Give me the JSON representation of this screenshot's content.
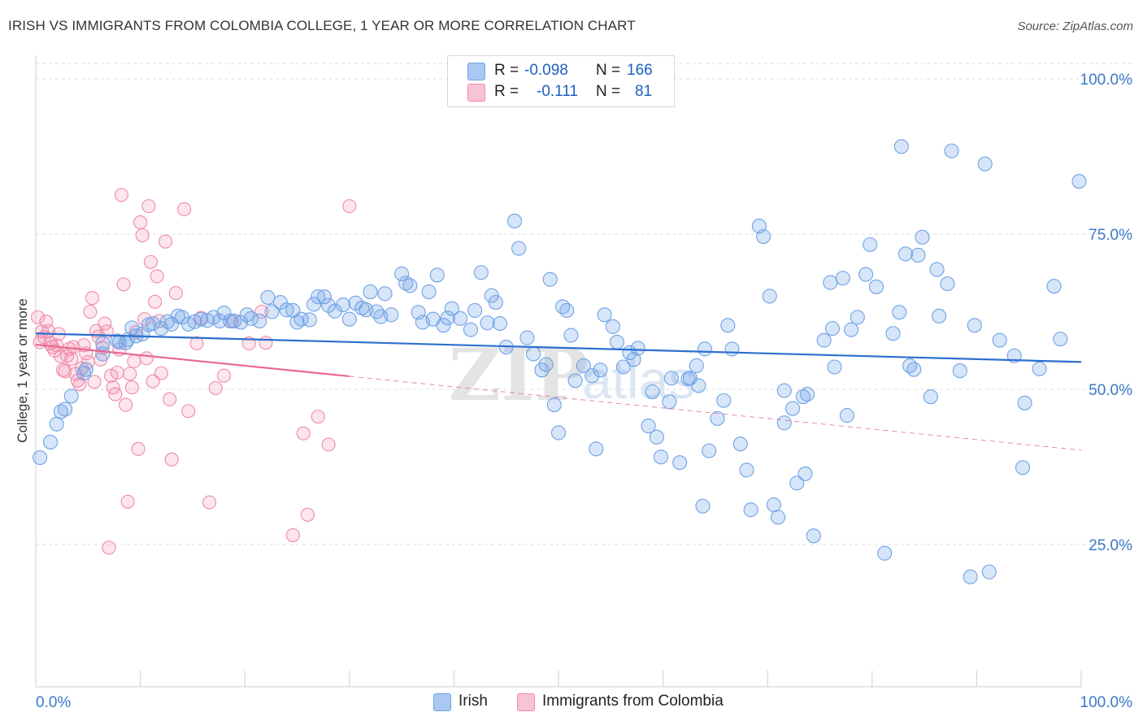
{
  "header": {
    "title": "IRISH VS IMMIGRANTS FROM COLOMBIA COLLEGE, 1 YEAR OR MORE CORRELATION CHART",
    "source": "Source: ZipAtlas.com"
  },
  "legend": {
    "rows": [
      {
        "r_label": "R =",
        "r_value": "-0.098",
        "n_label": "N =",
        "n_value": "166",
        "color": "#6fa3e6"
      },
      {
        "r_label": "R =",
        "r_value": "-0.111",
        "n_label": "N =",
        "n_value": "81",
        "color": "#f08aa8"
      }
    ]
  },
  "bottom_legend": {
    "irish": "Irish",
    "colombia": "Immigrants from Colombia"
  },
  "chart_data": {
    "type": "scatter",
    "xlabel": "",
    "ylabel": "College, 1 year or more",
    "xlim": [
      0,
      100
    ],
    "ylim": [
      0,
      105
    ],
    "x_tick_labels": [
      "0.0%",
      "100.0%"
    ],
    "y_tick_labels": [
      "25.0%",
      "50.0%",
      "75.0%",
      "100.0%"
    ],
    "y_ticks": [
      25,
      50,
      75,
      100
    ],
    "grid": true,
    "legend_position": "top-center",
    "watermark": "ZIPatlas",
    "colors": {
      "irish": "#6fa3e6",
      "colombia": "#f08aa8",
      "irish_line": "#2c6fcf",
      "colombia_line": "#e8698f",
      "tick_text": "#3b78c8"
    },
    "series": [
      {
        "name": "Irish",
        "trend": {
          "x": [
            0,
            100
          ],
          "y": [
            59.0,
            54.4
          ]
        },
        "points": [
          [
            0.4,
            39
          ],
          [
            1.4,
            41.5
          ],
          [
            2,
            44.4
          ],
          [
            2.4,
            46.4
          ],
          [
            2.8,
            46.8
          ],
          [
            3.4,
            48.9
          ],
          [
            4.6,
            52.6
          ],
          [
            4.8,
            53.2
          ],
          [
            6.4,
            55.7
          ],
          [
            6.4,
            57.4
          ],
          [
            7.8,
            57.8
          ],
          [
            8,
            57.6
          ],
          [
            8.6,
            57.5
          ],
          [
            8.8,
            58
          ],
          [
            9.2,
            59.9
          ],
          [
            9.6,
            58.6
          ],
          [
            10.2,
            58.9
          ],
          [
            10.8,
            60.4
          ],
          [
            11.2,
            60.6
          ],
          [
            12,
            59.8
          ],
          [
            12.6,
            60.9
          ],
          [
            13,
            60.5
          ],
          [
            13.6,
            61.8
          ],
          [
            14,
            61.6
          ],
          [
            14.6,
            60.5
          ],
          [
            15.2,
            60.9
          ],
          [
            15.8,
            61.3
          ],
          [
            16.4,
            61.1
          ],
          [
            17,
            61.6
          ],
          [
            17.6,
            61
          ],
          [
            18,
            62.3
          ],
          [
            18.6,
            61
          ],
          [
            19,
            61
          ],
          [
            19.6,
            60.8
          ],
          [
            20.2,
            62
          ],
          [
            20.6,
            61.4
          ],
          [
            21.4,
            61
          ],
          [
            22.2,
            64.8
          ],
          [
            22.6,
            62.5
          ],
          [
            23.4,
            64
          ],
          [
            24,
            62.8
          ],
          [
            24.6,
            62.7
          ],
          [
            25,
            60.8
          ],
          [
            25.4,
            61.3
          ],
          [
            26.2,
            61.2
          ],
          [
            26.6,
            63.7
          ],
          [
            27,
            64.9
          ],
          [
            27.6,
            64.9
          ],
          [
            28,
            63.5
          ],
          [
            28.6,
            62.6
          ],
          [
            29.4,
            63.6
          ],
          [
            30,
            61.3
          ],
          [
            30.6,
            63.9
          ],
          [
            31.2,
            63.1
          ],
          [
            31.6,
            62.8
          ],
          [
            32,
            65.7
          ],
          [
            32.6,
            62.5
          ],
          [
            33,
            61.7
          ],
          [
            33.4,
            65.4
          ],
          [
            34,
            62
          ],
          [
            35,
            68.6
          ],
          [
            35.4,
            67.1
          ],
          [
            35.8,
            66.7
          ],
          [
            36.6,
            62.4
          ],
          [
            37,
            60.8
          ],
          [
            37.6,
            65.7
          ],
          [
            38,
            61.3
          ],
          [
            38.4,
            68.4
          ],
          [
            39,
            60.3
          ],
          [
            39.4,
            61.5
          ],
          [
            39.8,
            63
          ],
          [
            40.6,
            61.4
          ],
          [
            41.6,
            59.6
          ],
          [
            42,
            62.7
          ],
          [
            42.6,
            68.8
          ],
          [
            43.2,
            60.7
          ],
          [
            43.6,
            65.1
          ],
          [
            44,
            64
          ],
          [
            44.4,
            60.6
          ],
          [
            45,
            56.8
          ],
          [
            45.8,
            77.1
          ],
          [
            46.2,
            72.7
          ],
          [
            47,
            58.3
          ],
          [
            47.6,
            55.7
          ],
          [
            48.4,
            53.1
          ],
          [
            48.8,
            54
          ],
          [
            49.2,
            67.7
          ],
          [
            49.6,
            47.5
          ],
          [
            50,
            43
          ],
          [
            50.4,
            63.3
          ],
          [
            50.8,
            62.7
          ],
          [
            51.2,
            58.7
          ],
          [
            51.6,
            51.4
          ],
          [
            52.4,
            53.8
          ],
          [
            53.2,
            52.2
          ],
          [
            53.6,
            40.4
          ],
          [
            54,
            53.1
          ],
          [
            54.4,
            62
          ],
          [
            55.2,
            60.1
          ],
          [
            55.6,
            57.6
          ],
          [
            56.2,
            53.6
          ],
          [
            56.8,
            55.9
          ],
          [
            57.2,
            54.8
          ],
          [
            57.6,
            56.6
          ],
          [
            58.6,
            44.1
          ],
          [
            59,
            49.6
          ],
          [
            59.4,
            42.3
          ],
          [
            59.8,
            39.1
          ],
          [
            60.6,
            48
          ],
          [
            60.8,
            51.8
          ],
          [
            61.6,
            38.2
          ],
          [
            62.4,
            51.7
          ],
          [
            62.6,
            51.8
          ],
          [
            63.2,
            53.8
          ],
          [
            63.4,
            50.6
          ],
          [
            63.8,
            31.2
          ],
          [
            64,
            56.5
          ],
          [
            64.4,
            40.1
          ],
          [
            65.2,
            45.3
          ],
          [
            65.8,
            48.2
          ],
          [
            66.2,
            60.3
          ],
          [
            66.6,
            56.5
          ],
          [
            67.4,
            41.2
          ],
          [
            68,
            37
          ],
          [
            68.4,
            30.6
          ],
          [
            69.2,
            76.3
          ],
          [
            69.6,
            74.6
          ],
          [
            70.2,
            65
          ],
          [
            70.6,
            31.4
          ],
          [
            71,
            29.4
          ],
          [
            71.6,
            44.6
          ],
          [
            72.4,
            46.9
          ],
          [
            72.8,
            34.9
          ],
          [
            73.6,
            36.4
          ],
          [
            73.8,
            49.2
          ],
          [
            74.4,
            26.4
          ],
          [
            75.4,
            57.9
          ],
          [
            76,
            67.2
          ],
          [
            76.2,
            59.8
          ],
          [
            76.4,
            53.6
          ],
          [
            77.2,
            67.9
          ],
          [
            77.6,
            45.8
          ],
          [
            78,
            59.6
          ],
          [
            78.6,
            61.6
          ],
          [
            79.4,
            68.5
          ],
          [
            79.8,
            73.3
          ],
          [
            80.4,
            66.5
          ],
          [
            81.2,
            23.6
          ],
          [
            82,
            59
          ],
          [
            82.6,
            62.4
          ],
          [
            82.8,
            89.1
          ],
          [
            83.2,
            71.8
          ],
          [
            83.6,
            53.8
          ],
          [
            84,
            53.2
          ],
          [
            84.4,
            71.6
          ],
          [
            84.8,
            74.5
          ],
          [
            85.6,
            48.8
          ],
          [
            86.2,
            69.3
          ],
          [
            86.4,
            61.8
          ],
          [
            87.2,
            67
          ],
          [
            87.6,
            88.4
          ],
          [
            88.4,
            53
          ],
          [
            89.4,
            19.8
          ],
          [
            89.8,
            60.3
          ],
          [
            90.8,
            86.3
          ],
          [
            91.2,
            20.6
          ],
          [
            92.2,
            57.9
          ],
          [
            93.6,
            55.4
          ],
          [
            94.4,
            37.4
          ],
          [
            96,
            53.3
          ],
          [
            97.4,
            66.6
          ],
          [
            99.8,
            83.5
          ],
          [
            98,
            58.1
          ],
          [
            94.6,
            47.8
          ],
          [
            71.6,
            49.8
          ],
          [
            73.4,
            48.8
          ]
        ]
      },
      {
        "name": "Immigrants from Colombia",
        "trend": {
          "x": [
            0,
            30
          ],
          "y": [
            57.2,
            52.1
          ]
        },
        "points": [
          [
            0.2,
            61.6
          ],
          [
            0.4,
            57.6
          ],
          [
            0.6,
            59.3
          ],
          [
            0.8,
            58.4
          ],
          [
            1,
            60.9
          ],
          [
            1.2,
            59.4
          ],
          [
            1.4,
            57.4
          ],
          [
            1.6,
            56.8
          ],
          [
            1.8,
            56.2
          ],
          [
            2,
            57.1
          ],
          [
            2.2,
            58.9
          ],
          [
            2.4,
            55.3
          ],
          [
            2.6,
            53.1
          ],
          [
            2.8,
            52.9
          ],
          [
            3,
            55.4
          ],
          [
            3.2,
            56.5
          ],
          [
            3.4,
            54.9
          ],
          [
            3.6,
            56.8
          ],
          [
            3.8,
            52.5
          ],
          [
            4,
            51.4
          ],
          [
            4.2,
            50.8
          ],
          [
            4.4,
            53.4
          ],
          [
            4.6,
            57.1
          ],
          [
            4.8,
            55.8
          ],
          [
            5,
            54.4
          ],
          [
            5.2,
            62.5
          ],
          [
            5.4,
            64.7
          ],
          [
            5.6,
            51.2
          ],
          [
            5.8,
            59.4
          ],
          [
            6,
            58.5
          ],
          [
            6.2,
            54.8
          ],
          [
            6.4,
            56.7
          ],
          [
            6.6,
            60.6
          ],
          [
            6.8,
            59.3
          ],
          [
            7,
            24.5
          ],
          [
            7.2,
            52.2
          ],
          [
            7.4,
            50.3
          ],
          [
            7.6,
            49.2
          ],
          [
            7.8,
            52.7
          ],
          [
            8,
            56.4
          ],
          [
            8.2,
            81.3
          ],
          [
            8.4,
            66.9
          ],
          [
            8.6,
            47.5
          ],
          [
            8.8,
            31.9
          ],
          [
            9,
            52.5
          ],
          [
            9.2,
            50.3
          ],
          [
            9.4,
            54.5
          ],
          [
            9.6,
            59.2
          ],
          [
            9.8,
            40.4
          ],
          [
            10,
            76.9
          ],
          [
            10.2,
            74.8
          ],
          [
            10.4,
            61.3
          ],
          [
            10.6,
            55
          ],
          [
            10.8,
            79.5
          ],
          [
            11,
            70.5
          ],
          [
            11.2,
            51.3
          ],
          [
            11.4,
            64.1
          ],
          [
            11.6,
            68.2
          ],
          [
            11.8,
            61
          ],
          [
            12,
            52.6
          ],
          [
            12.4,
            73.8
          ],
          [
            12.8,
            48.4
          ],
          [
            13,
            38.7
          ],
          [
            13.4,
            65.5
          ],
          [
            14.2,
            79
          ],
          [
            14.6,
            46.5
          ],
          [
            15.4,
            57.4
          ],
          [
            15.8,
            61.5
          ],
          [
            16.6,
            31.8
          ],
          [
            17.2,
            50.2
          ],
          [
            18,
            52.2
          ],
          [
            18.8,
            60.9
          ],
          [
            21.6,
            62.5
          ],
          [
            22,
            57.5
          ],
          [
            24.6,
            26.5
          ],
          [
            25.6,
            42.9
          ],
          [
            26,
            29.8
          ],
          [
            28,
            41.1
          ],
          [
            30,
            79.5
          ],
          [
            27,
            45.6
          ],
          [
            20.4,
            57.4
          ]
        ]
      }
    ]
  }
}
